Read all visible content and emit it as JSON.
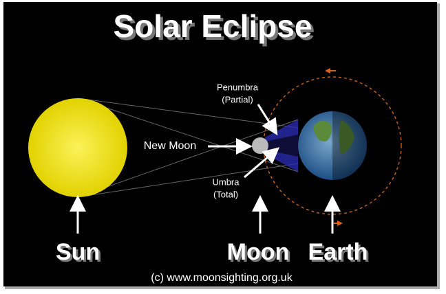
{
  "title": "Solar Eclipse",
  "labels": {
    "penumbra": "Penumbra",
    "penumbra_note": "(Partial)",
    "new_moon": "New Moon",
    "umbra": "Umbra",
    "umbra_note": "(Total)"
  },
  "bodies": {
    "sun": "Sun",
    "moon": "Moon",
    "earth": "Earth"
  },
  "credit": "(c) www.moonsighting.org.uk"
}
